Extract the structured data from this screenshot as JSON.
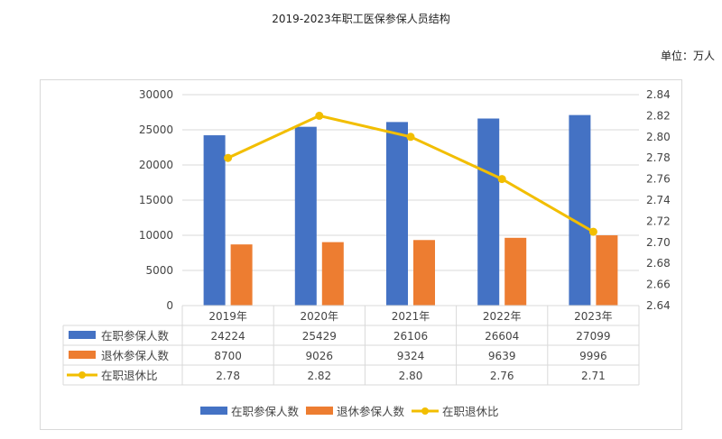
{
  "chart_data": {
    "type": "bar",
    "title": "2019-2023年职工医保参保人员结构",
    "unit": "单位：万人",
    "categories": [
      "2019年",
      "2020年",
      "2021年",
      "2022年",
      "2023年"
    ],
    "series": [
      {
        "name": "在职参保人数",
        "type": "bar",
        "axis": "left",
        "color": "#4472C4",
        "values": [
          24224,
          25429,
          26106,
          26604,
          27099
        ]
      },
      {
        "name": "退休参保人数",
        "type": "bar",
        "axis": "left",
        "color": "#ED7D31",
        "values": [
          8700,
          9026,
          9324,
          9639,
          9996
        ]
      },
      {
        "name": "在职退休比",
        "type": "line",
        "axis": "right",
        "color": "#F2BE00",
        "values": [
          2.78,
          2.82,
          2.8,
          2.76,
          2.71
        ]
      }
    ],
    "left_axis": {
      "min": 0,
      "max": 30000,
      "step": 5000,
      "ticks": [
        "0",
        "5000",
        "10000",
        "15000",
        "20000",
        "25000",
        "30000"
      ]
    },
    "right_axis": {
      "min": 2.64,
      "max": 2.84,
      "step": 0.02,
      "ticks": [
        "2.64",
        "2.66",
        "2.68",
        "2.70",
        "2.72",
        "2.74",
        "2.76",
        "2.78",
        "2.80",
        "2.82",
        "2.84"
      ]
    },
    "grid": true,
    "data_table": true,
    "legend": "bottom"
  }
}
